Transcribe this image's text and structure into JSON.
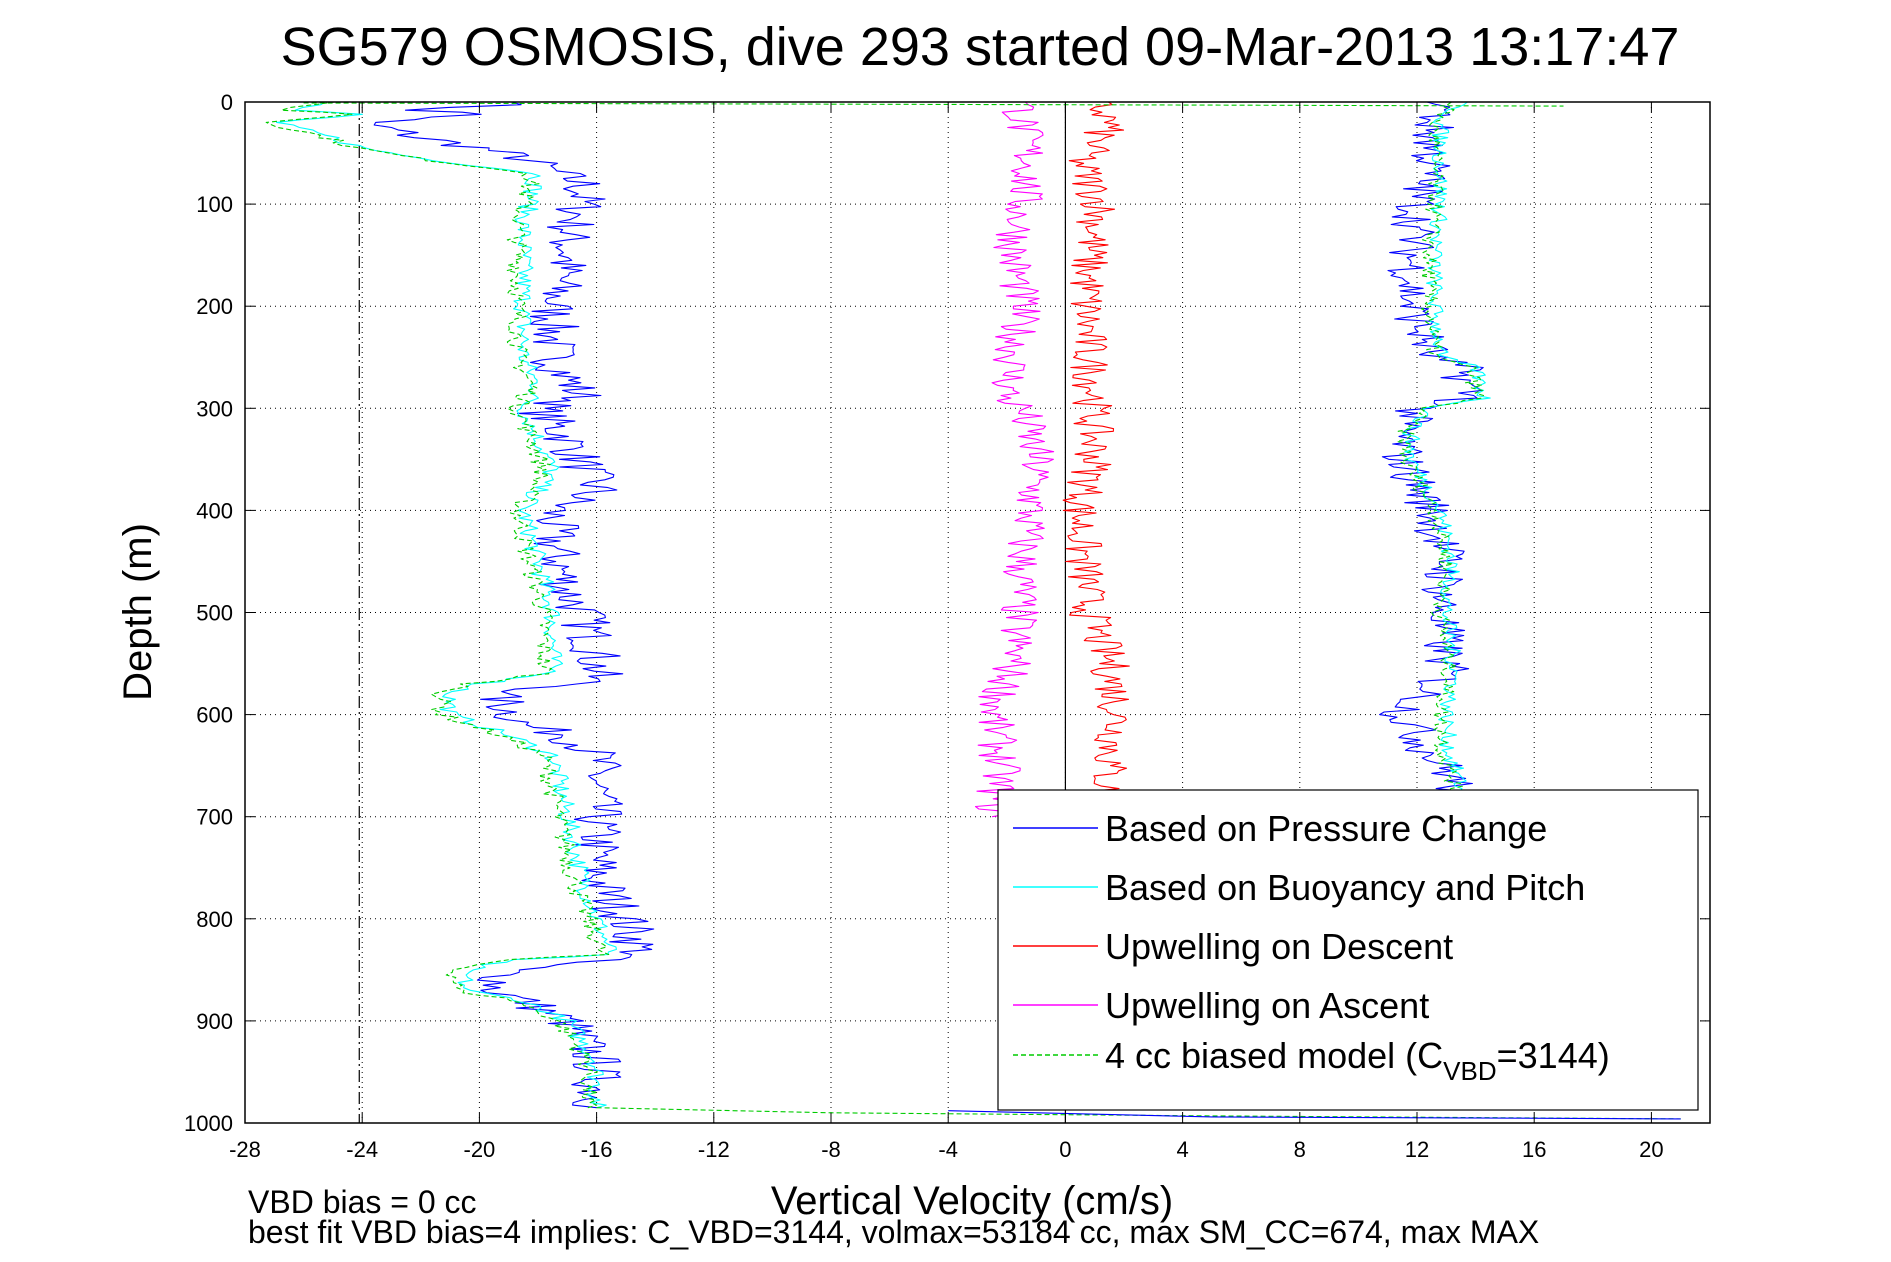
{
  "chart_data": {
    "type": "line",
    "title": "SG579 OSMOSIS, dive 293 started 09-Mar-2013 13:17:47",
    "xlabel": "Vertical Velocity (cm/s)",
    "ylabel": "Depth (m)",
    "xlim": [
      -28,
      22
    ],
    "ylim": [
      0,
      1000
    ],
    "y_reversed": true,
    "grid": true,
    "xticks": [
      -28,
      -24,
      -20,
      -16,
      -12,
      -8,
      -4,
      0,
      4,
      8,
      12,
      16,
      20
    ],
    "yticks": [
      0,
      100,
      200,
      300,
      400,
      500,
      600,
      700,
      800,
      900,
      1000
    ],
    "reference_lines": [
      {
        "x": 0,
        "style": "solid"
      },
      {
        "x": -24.1,
        "style": "dash-dot"
      }
    ],
    "legend": {
      "placement": "bottom-right",
      "entries": [
        {
          "label": "Based on Pressure Change",
          "color": "#0000ff",
          "style": "solid"
        },
        {
          "label": "Based on Buoyancy and Pitch",
          "color": "#00ffff",
          "style": "solid"
        },
        {
          "label": "Upwelling on Descent",
          "color": "#ff0000",
          "style": "solid"
        },
        {
          "label": "Upwelling on Ascent",
          "color": "#ff00ff",
          "style": "solid"
        },
        {
          "label_main": "4 cc biased model (C",
          "label_sub": "VBD",
          "label_end": "=3144)",
          "color": "#00cc00",
          "style": "dashed"
        }
      ]
    },
    "footnotes": [
      "VBD bias = 0 cc",
      "best fit VBD bias=4 implies: C_VBD=3144, volmax=53184 cc, max SM_CC=674, max MAX"
    ],
    "series": [
      {
        "name": "Based on Pressure Change",
        "color": "#0000ff",
        "style": "solid",
        "noise": 0.9,
        "depth": [
          0,
          8,
          12,
          20,
          35,
          45,
          55,
          80,
          100,
          130,
          150,
          200,
          250,
          290,
          300,
          330,
          380,
          400,
          430,
          480,
          500,
          540,
          560,
          570,
          580,
          610,
          620,
          640,
          700,
          760,
          800,
          835,
          850,
          870,
          880,
          900,
          940,
          980,
          985
        ],
        "velocity": [
          -18,
          -22,
          -20,
          -24,
          -22,
          -20,
          -18.5,
          -16.5,
          -16.5,
          -17,
          -17,
          -17.5,
          -17.5,
          -16.5,
          -18,
          -17,
          -16,
          -17.5,
          -17.5,
          -17,
          -16.5,
          -16,
          -16,
          -16.5,
          -19.5,
          -18.5,
          -17,
          -16,
          -16,
          -16,
          -15,
          -14.5,
          -19,
          -19.5,
          -18.5,
          -17,
          -16,
          -16,
          -16
        ]
      },
      {
        "name": "Based on Buoyancy and Pitch",
        "color": "#00ffff",
        "style": "solid",
        "noise": 0.35,
        "depth": [
          0,
          8,
          12,
          20,
          35,
          45,
          55,
          70,
          120,
          200,
          250,
          280,
          300,
          330,
          360,
          380,
          400,
          450,
          500,
          560,
          570,
          580,
          600,
          620,
          640,
          700,
          760,
          800,
          835,
          840,
          850,
          870,
          880,
          900,
          940,
          985
        ],
        "velocity": [
          -25,
          -26.5,
          -24,
          -27,
          -25,
          -24,
          -22,
          -18,
          -18.5,
          -18.5,
          -18.5,
          -18,
          -18.5,
          -18,
          -17.5,
          -18,
          -18.5,
          -18,
          -17.5,
          -17.5,
          -20,
          -21,
          -21,
          -19,
          -17.5,
          -17,
          -16.5,
          -16,
          -15.5,
          -19,
          -20.5,
          -20.5,
          -18.5,
          -17,
          -16,
          -16
        ]
      },
      {
        "name": "4 cc biased model",
        "color": "#00cc00",
        "style": "dashed",
        "noise": 0.35,
        "depth": [
          0,
          8,
          12,
          20,
          35,
          45,
          55,
          70,
          120,
          200,
          250,
          280,
          300,
          330,
          360,
          380,
          400,
          450,
          500,
          560,
          570,
          580,
          600,
          620,
          640,
          700,
          760,
          800,
          835,
          840,
          850,
          870,
          880,
          900,
          940,
          985
        ],
        "velocity": [
          -25.2,
          -26.7,
          -24.2,
          -27.2,
          -25.2,
          -24.2,
          -22.2,
          -18.2,
          -18.7,
          -18.7,
          -18.7,
          -18.2,
          -18.7,
          -18.2,
          -17.8,
          -18.2,
          -18.7,
          -18.3,
          -17.8,
          -17.8,
          -20.3,
          -21.3,
          -21.3,
          -19.3,
          -17.8,
          -17.3,
          -16.8,
          -16.3,
          -15.8,
          -19.3,
          -20.8,
          -20.8,
          -18.8,
          -17.3,
          -16.3,
          -16.3
        ]
      },
      {
        "name": "Upwelling on Descent",
        "color": "#ff0000",
        "style": "solid",
        "noise": 0.7,
        "depth": [
          0,
          20,
          60,
          100,
          150,
          200,
          250,
          290,
          300,
          350,
          400,
          450,
          500,
          550,
          600,
          650,
          700
        ],
        "velocity": [
          1,
          1.5,
          0.5,
          1.2,
          0.8,
          0.7,
          0.8,
          1,
          0.9,
          1,
          0.5,
          0.6,
          0.8,
          1.5,
          1.8,
          1.5,
          1.2
        ]
      },
      {
        "name": "Upwelling on Ascent",
        "color": "#ff00ff",
        "style": "solid",
        "noise": 0.7,
        "depth": [
          0,
          20,
          60,
          100,
          150,
          200,
          250,
          290,
          300,
          350,
          400,
          450,
          500,
          550,
          600,
          650,
          700
        ],
        "velocity": [
          -1.5,
          -1.5,
          -1.2,
          -1.5,
          -1.8,
          -1.5,
          -1.8,
          -2,
          -1.5,
          -1,
          -1.2,
          -1.5,
          -1.6,
          -1.8,
          -2.5,
          -2.2,
          -2.5
        ]
      },
      {
        "name": "Ascent (Pressure Change)",
        "color": "#0000ff",
        "style": "solid",
        "noise": 0.8,
        "depth": [
          0,
          20,
          60,
          100,
          150,
          200,
          250,
          260,
          290,
          300,
          320,
          350,
          400,
          450,
          500,
          560,
          600,
          640,
          660,
          680
        ],
        "velocity": [
          13,
          12.5,
          12.5,
          12,
          11.8,
          11.8,
          12.5,
          13.5,
          13.8,
          12,
          11.5,
          11.5,
          12.5,
          13,
          12.8,
          13,
          11.5,
          12.5,
          13.2,
          13.4
        ]
      },
      {
        "name": "Ascent (Buoyancy and Pitch)",
        "color": "#00ffff",
        "style": "solid",
        "noise": 0.3,
        "depth": [
          0,
          20,
          60,
          100,
          150,
          200,
          250,
          260,
          290,
          300,
          320,
          350,
          400,
          450,
          500,
          560,
          600,
          640,
          660,
          680
        ],
        "velocity": [
          13.5,
          12.8,
          12.8,
          12.8,
          12.6,
          12.6,
          12.8,
          14,
          14.3,
          12.5,
          11.8,
          11.8,
          12.8,
          13.2,
          13,
          13.3,
          13,
          13.1,
          13.4,
          13.5
        ]
      },
      {
        "name": "Ascent (biased model)",
        "color": "#00cc00",
        "style": "dashed",
        "noise": 0.3,
        "depth": [
          0,
          20,
          60,
          100,
          150,
          200,
          250,
          260,
          290,
          300,
          320,
          350,
          400,
          450,
          500,
          560,
          600,
          640,
          660,
          680
        ],
        "velocity": [
          13.3,
          12.6,
          12.6,
          12.6,
          12.4,
          12.4,
          12.6,
          13.8,
          14.1,
          12.3,
          11.6,
          11.6,
          12.6,
          13,
          12.8,
          13.1,
          12.8,
          12.9,
          13.2,
          13.3
        ]
      },
      {
        "name": "Surface transition",
        "color": "#00cc00",
        "style": "dashed",
        "noise": 0,
        "depth": [
          1,
          2,
          3,
          4
        ],
        "velocity": [
          -26,
          -10,
          5,
          17
        ]
      },
      {
        "name": "Bottom transition",
        "color": "#00cc00",
        "style": "dashed",
        "noise": 0,
        "depth": [
          985,
          990,
          993,
          996
        ],
        "velocity": [
          -16,
          -8,
          5,
          21
        ]
      },
      {
        "name": "Bottom transition (pressure)",
        "color": "#0000ff",
        "style": "solid",
        "noise": 0,
        "depth": [
          988,
          994,
          996
        ],
        "velocity": [
          -4,
          5,
          21
        ]
      }
    ]
  }
}
